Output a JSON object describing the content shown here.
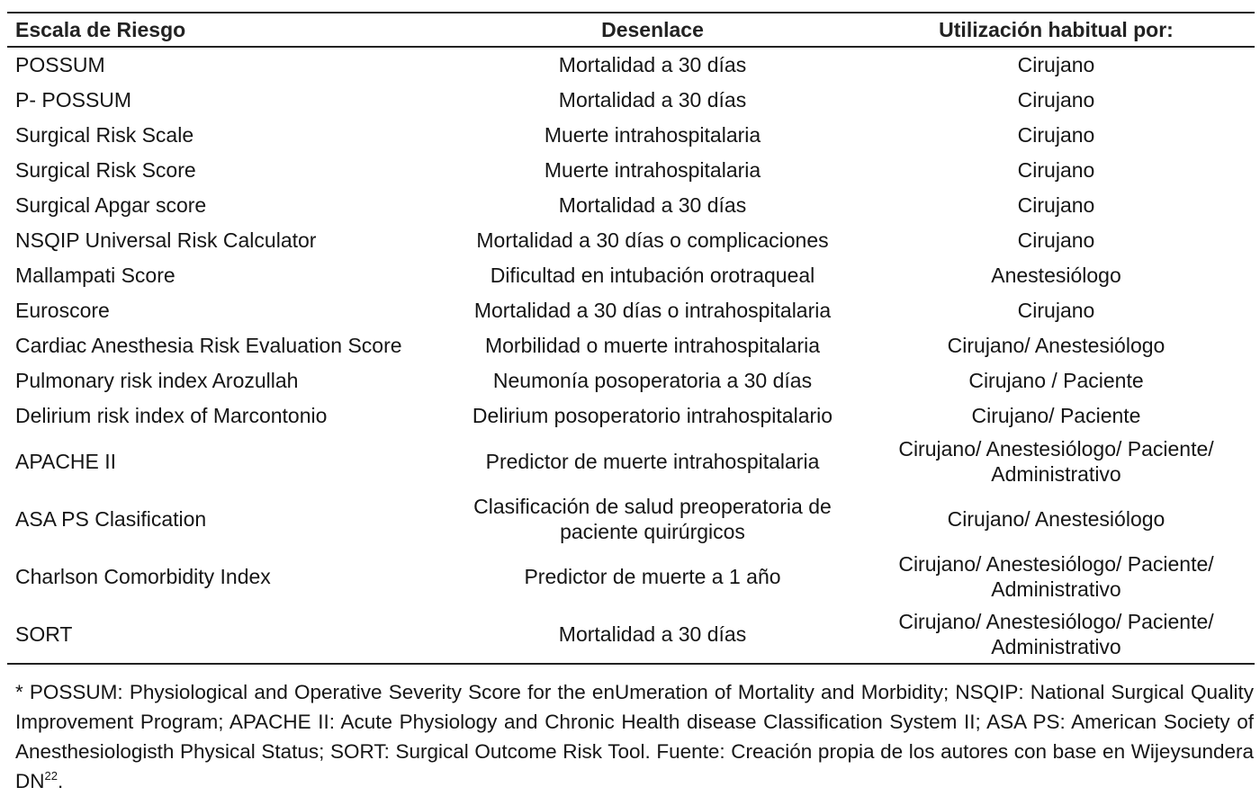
{
  "table": {
    "header": [
      "Escala de Riesgo",
      "Desenlace",
      "Utilización habitual por:"
    ],
    "rows": [
      [
        "POSSUM",
        "Mortalidad a 30 días",
        "Cirujano"
      ],
      [
        "P- POSSUM",
        "Mortalidad a 30 días",
        "Cirujano"
      ],
      [
        "Surgical Risk Scale",
        "Muerte intrahospitalaria",
        "Cirujano"
      ],
      [
        "Surgical Risk Score",
        "Muerte intrahospitalaria",
        "Cirujano"
      ],
      [
        "Surgical Apgar score",
        "Mortalidad a 30 días",
        "Cirujano"
      ],
      [
        "NSQIP Universal Risk Calculator",
        "Mortalidad a 30 días o complicaciones",
        "Cirujano"
      ],
      [
        "Mallampati Score",
        "Dificultad en intubación orotraqueal",
        "Anestesiólogo"
      ],
      [
        "Euroscore",
        "Mortalidad a 30 días o intrahospitalaria",
        "Cirujano"
      ],
      [
        "Cardiac Anesthesia Risk Evaluation Score",
        "Morbilidad o muerte intrahospitalaria",
        "Cirujano/ Anestesiólogo"
      ],
      [
        "Pulmonary risk index Arozullah",
        "Neumonía posoperatoria a 30 días",
        "Cirujano / Paciente"
      ],
      [
        "Delirium risk index of Marcontonio",
        "Delirium posoperatorio intrahospitalario",
        "Cirujano/ Paciente"
      ],
      [
        "APACHE II",
        "Predictor de muerte intrahospitalaria",
        "Cirujano/ Anestesiólogo/ Paciente/\nAdministrativo"
      ],
      [
        "ASA PS Clasification",
        "Clasificación de salud preoperatoria de\npaciente quirúrgicos",
        "Cirujano/ Anestesiólogo"
      ],
      [
        "Charlson Comorbidity Index",
        "Predictor de muerte a 1 año",
        "Cirujano/ Anestesiólogo/ Paciente/\nAdministrativo"
      ],
      [
        "SORT",
        "Mortalidad a 30 días",
        "Cirujano/ Anestesiólogo/ Paciente/\nAdministrativo"
      ]
    ]
  },
  "footnote": {
    "text": "* POSSUM: Physiological and Operative Severity Score for the enUmeration of Mortality and Morbidity; NSQIP: National Surgical Quality Improvement Program; APACHE II: Acute Physiology and Chronic Health disease Classification System II; ASA PS: American Society of Anesthesiologisth Physical Status; SORT: Surgical Outcome Risk Tool. Fuente: Creación propia de los autores con base en Wijeysundera DN",
    "superscript": "22",
    "end": "."
  }
}
